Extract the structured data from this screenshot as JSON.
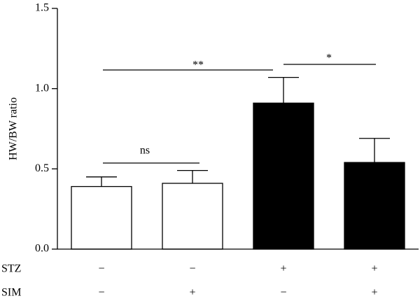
{
  "chart_data": {
    "type": "bar",
    "y_label": "HW/BW ratio",
    "values": [
      0.39,
      0.41,
      0.91,
      0.54
    ],
    "errors": [
      0.06,
      0.08,
      0.16,
      0.15
    ],
    "colors": [
      "#ffffff",
      "#ffffff",
      "#000000",
      "#000000"
    ],
    "ylim": [
      0,
      1.5
    ],
    "yticks": [
      {
        "value": 0,
        "label": "0.0"
      },
      0.5,
      {
        "value": 1,
        "label": "1.0"
      },
      1.5
    ],
    "conditions": [
      {
        "label": "STZ",
        "values": [
          "−",
          "−",
          "+",
          "+"
        ]
      },
      {
        "label": "SIM",
        "values": [
          "−",
          "+",
          "−",
          "+"
        ]
      }
    ],
    "annotations": [
      "ns",
      "**",
      "*"
    ]
  }
}
